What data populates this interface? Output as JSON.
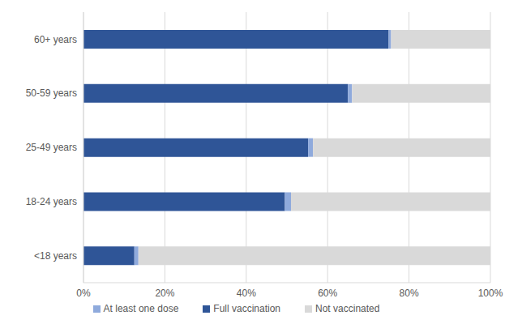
{
  "chart_data": {
    "type": "bar",
    "orientation": "horizontal",
    "stacked": true,
    "categories": [
      "60+ years",
      "50-59 years",
      "25-49 years",
      "18-24 years",
      "<18 years"
    ],
    "series": [
      {
        "name": "Full vaccination",
        "color": "#2f5597",
        "values": [
          75,
          65,
          55.2,
          49.5,
          12.5
        ]
      },
      {
        "name": "At least one dose",
        "color": "#8faadc",
        "values": [
          0.6,
          1,
          1.2,
          1.5,
          1
        ]
      },
      {
        "name": "Not vaccinated",
        "color": "#d9d9d9",
        "values": [
          24.4,
          34,
          43.6,
          49,
          86.5
        ]
      }
    ],
    "xlim": [
      0,
      100
    ],
    "xticks": [
      {
        "value": 0,
        "label": "0%"
      },
      {
        "value": 20,
        "label": "20%"
      },
      {
        "value": 40,
        "label": "40%"
      },
      {
        "value": 60,
        "label": "60%"
      },
      {
        "value": 80,
        "label": "80%"
      },
      {
        "value": 100,
        "label": "100%"
      }
    ],
    "grid": true,
    "legend": "bottom"
  }
}
